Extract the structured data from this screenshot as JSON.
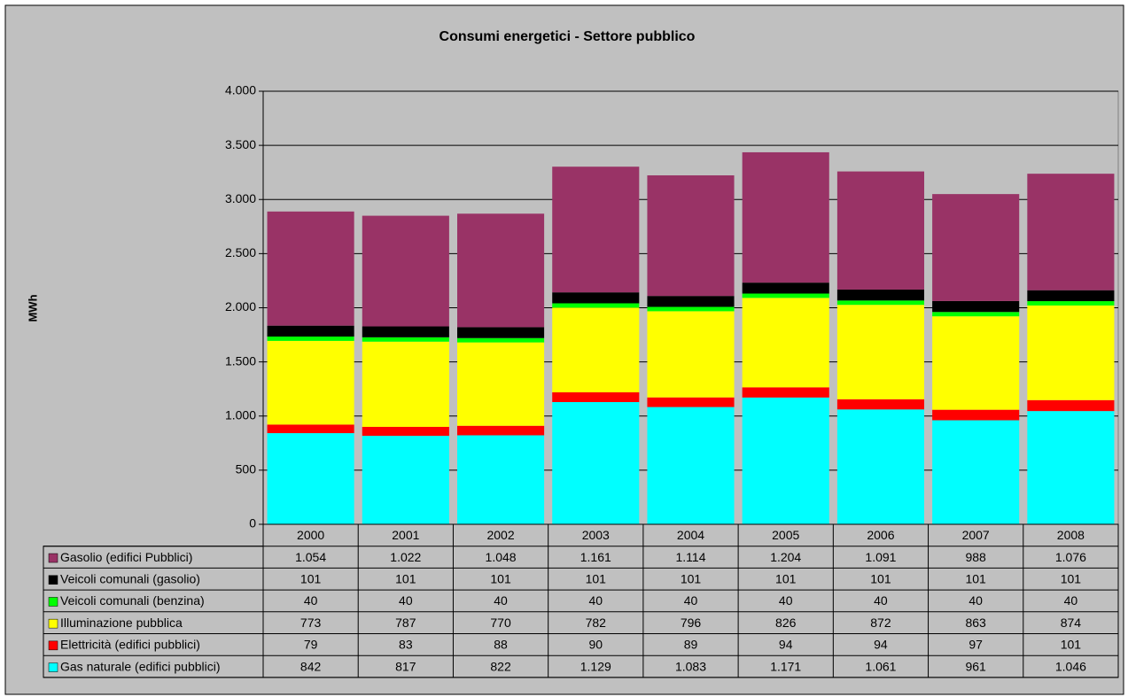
{
  "chart_data": {
    "type": "stacked_bar",
    "title": "Consumi energetici - Settore pubblico",
    "y_label": "MWh",
    "categories": [
      "2000",
      "2001",
      "2002",
      "2003",
      "2004",
      "2005",
      "2006",
      "2007",
      "2008"
    ],
    "series": [
      {
        "name": "Gasolio (edifici Pubblici)",
        "color": "#993366",
        "values": [
          1054,
          1022,
          1048,
          1161,
          1114,
          1204,
          1091,
          988,
          1076
        ],
        "value_labels": [
          "1.054",
          "1.022",
          "1.048",
          "1.161",
          "1.114",
          "1.204",
          "1.091",
          "988",
          "1.076"
        ]
      },
      {
        "name": "Veicoli comunali (gasolio)",
        "color": "#000000",
        "values": [
          101,
          101,
          101,
          101,
          101,
          101,
          101,
          101,
          101
        ]
      },
      {
        "name": "Veicoli comunali (benzina)",
        "color": "#00ff00",
        "values": [
          40,
          40,
          40,
          40,
          40,
          40,
          40,
          40,
          40
        ]
      },
      {
        "name": "Illuminazione pubblica",
        "color": "#ffff00",
        "values": [
          773,
          787,
          770,
          782,
          796,
          826,
          872,
          863,
          874
        ]
      },
      {
        "name": "Elettricità (edifici pubblici)",
        "color": "#ff0000",
        "values": [
          79,
          83,
          88,
          90,
          89,
          94,
          94,
          97,
          101
        ]
      },
      {
        "name": "Gas naturale (edifici pubblici)",
        "color": "#00ffff",
        "values": [
          842,
          817,
          822,
          1129,
          1083,
          1171,
          1061,
          961,
          1046
        ],
        "value_labels": [
          "842",
          "817",
          "822",
          "1.129",
          "1.083",
          "1.171",
          "1.061",
          "961",
          "1.046"
        ]
      }
    ],
    "ylim": [
      0,
      4000
    ],
    "yticks": [
      0,
      500,
      {
        "value": 1000,
        "label": "1.000"
      },
      {
        "value": 1500,
        "label": "1.500"
      },
      {
        "value": 2000,
        "label": "2.000"
      },
      {
        "value": 2500,
        "label": "2.500"
      },
      {
        "value": 3000,
        "label": "3.000"
      },
      {
        "value": 3500,
        "label": "3.500"
      },
      {
        "value": 4000,
        "label": "4.000"
      }
    ],
    "grid": true
  }
}
